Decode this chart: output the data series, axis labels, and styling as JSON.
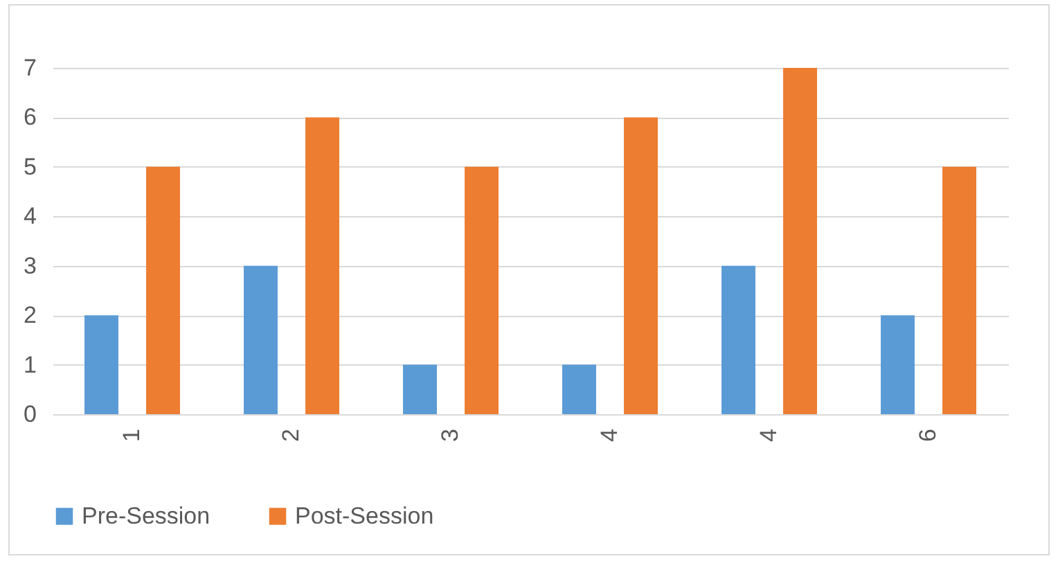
{
  "chart_data": {
    "type": "bar",
    "categories": [
      "1",
      "2",
      "3",
      "4",
      "4",
      "6"
    ],
    "series": [
      {
        "name": "Pre-Session",
        "color": "#5b9bd5",
        "values": [
          2,
          3,
          1,
          1,
          3,
          2
        ]
      },
      {
        "name": "Post-Session",
        "color": "#ed7d31",
        "values": [
          5,
          6,
          5,
          6,
          7,
          5
        ]
      }
    ],
    "ylim": [
      0,
      7
    ],
    "yticks": [
      0,
      1,
      2,
      3,
      4,
      5,
      6,
      7
    ],
    "grid": "y",
    "legend": "bottom"
  }
}
